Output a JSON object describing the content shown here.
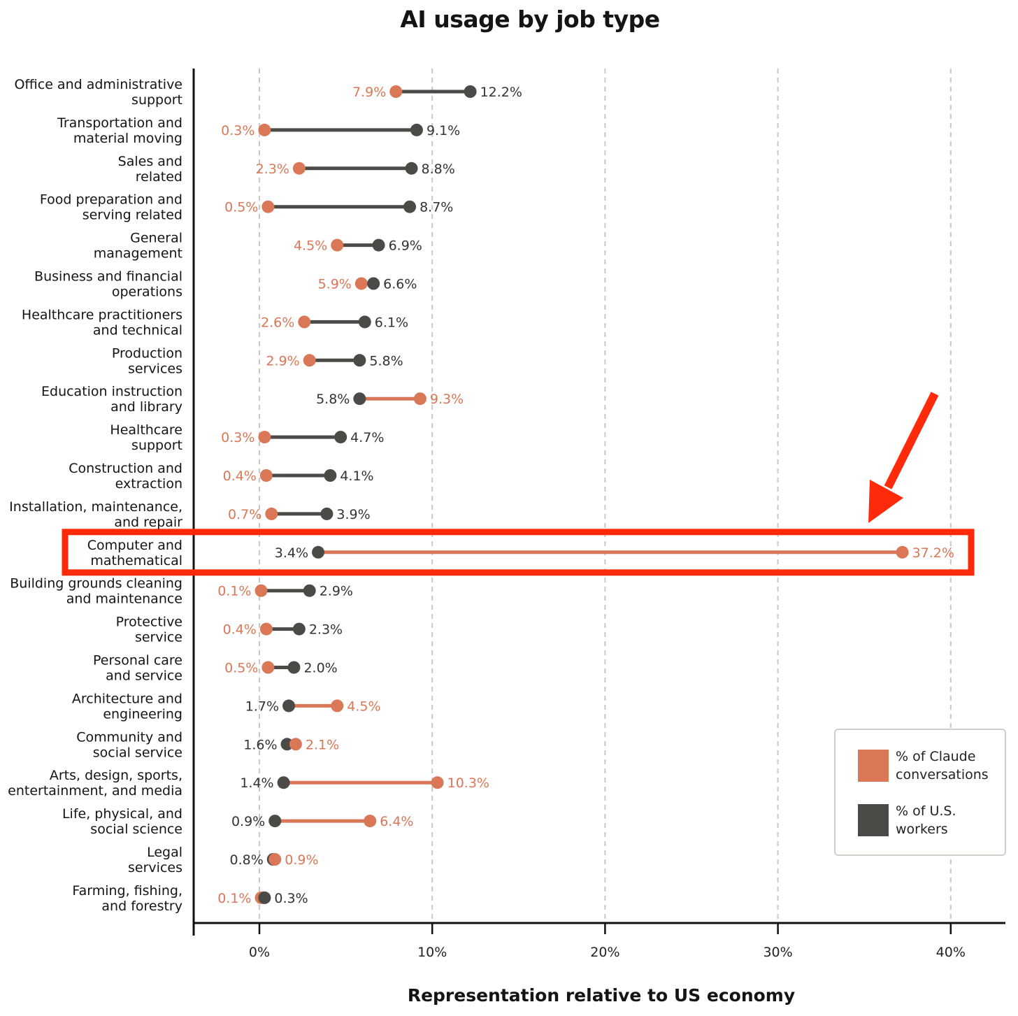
{
  "chart_data": {
    "type": "dumbbell",
    "title": "AI usage by job type",
    "xlabel": "Representation relative to US economy",
    "xlim": [
      -3.8,
      43
    ],
    "xticks": [
      0,
      10,
      20,
      30,
      40
    ],
    "xtick_labels": [
      "0%",
      "10%",
      "20%",
      "30%",
      "40%"
    ],
    "grid": "vertical dashed",
    "legend_position": "bottom-right",
    "series": [
      {
        "key": "claude",
        "name": "% of Claude conversations",
        "color": "#d97757"
      },
      {
        "key": "workers",
        "name": "% of U.S. workers",
        "color": "#4a4a47"
      }
    ],
    "categories": [
      {
        "label": [
          "Office and administrative",
          "support"
        ],
        "claude": 7.9,
        "workers": 12.2,
        "claude_label": "7.9%",
        "workers_label": "12.2%"
      },
      {
        "label": [
          "Transportation and",
          "material moving"
        ],
        "claude": 0.3,
        "workers": 9.1,
        "claude_label": "0.3%",
        "workers_label": "9.1%"
      },
      {
        "label": [
          "Sales and",
          "related"
        ],
        "claude": 2.3,
        "workers": 8.8,
        "claude_label": "2.3%",
        "workers_label": "8.8%"
      },
      {
        "label": [
          "Food preparation and",
          "serving related"
        ],
        "claude": 0.5,
        "workers": 8.7,
        "claude_label": "0.5%",
        "workers_label": "8.7%"
      },
      {
        "label": [
          "General",
          "management"
        ],
        "claude": 4.5,
        "workers": 6.9,
        "claude_label": "4.5%",
        "workers_label": "6.9%"
      },
      {
        "label": [
          "Business and financial",
          "operations"
        ],
        "claude": 5.9,
        "workers": 6.6,
        "claude_label": "5.9%",
        "workers_label": "6.6%"
      },
      {
        "label": [
          "Healthcare practitioners",
          "and technical"
        ],
        "claude": 2.6,
        "workers": 6.1,
        "claude_label": "2.6%",
        "workers_label": "6.1%"
      },
      {
        "label": [
          "Production",
          "services"
        ],
        "claude": 2.9,
        "workers": 5.8,
        "claude_label": "2.9%",
        "workers_label": "5.8%"
      },
      {
        "label": [
          "Education instruction",
          "and library"
        ],
        "claude": 9.3,
        "workers": 5.8,
        "claude_label": "9.3%",
        "workers_label": "5.8%"
      },
      {
        "label": [
          "Healthcare",
          "support"
        ],
        "claude": 0.3,
        "workers": 4.7,
        "claude_label": "0.3%",
        "workers_label": "4.7%"
      },
      {
        "label": [
          "Construction and",
          "extraction"
        ],
        "claude": 0.4,
        "workers": 4.1,
        "claude_label": "0.4%",
        "workers_label": "4.1%"
      },
      {
        "label": [
          "Installation, maintenance,",
          "and repair"
        ],
        "claude": 0.7,
        "workers": 3.9,
        "claude_label": "0.7%",
        "workers_label": "3.9%"
      },
      {
        "label": [
          "Computer and",
          "mathematical"
        ],
        "claude": 37.2,
        "workers": 3.4,
        "claude_label": "37.2%",
        "workers_label": "3.4%",
        "highlighted": true
      },
      {
        "label": [
          "Building grounds cleaning",
          "and maintenance"
        ],
        "claude": 0.1,
        "workers": 2.9,
        "claude_label": "0.1%",
        "workers_label": "2.9%"
      },
      {
        "label": [
          "Protective",
          "service"
        ],
        "claude": 0.4,
        "workers": 2.3,
        "claude_label": "0.4%",
        "workers_label": "2.3%"
      },
      {
        "label": [
          "Personal care",
          "and service"
        ],
        "claude": 0.5,
        "workers": 2.0,
        "claude_label": "0.5%",
        "workers_label": "2.0%"
      },
      {
        "label": [
          "Architecture and",
          "engineering"
        ],
        "claude": 4.5,
        "workers": 1.7,
        "claude_label": "4.5%",
        "workers_label": "1.7%"
      },
      {
        "label": [
          "Community and",
          "social service"
        ],
        "claude": 2.1,
        "workers": 1.6,
        "claude_label": "2.1%",
        "workers_label": "1.6%"
      },
      {
        "label": [
          "Arts, design, sports,",
          "entertainment, and media"
        ],
        "claude": 10.3,
        "workers": 1.4,
        "claude_label": "10.3%",
        "workers_label": "1.4%"
      },
      {
        "label": [
          "Life, physical, and",
          "social science"
        ],
        "claude": 6.4,
        "workers": 0.9,
        "claude_label": "6.4%",
        "workers_label": "0.9%"
      },
      {
        "label": [
          "Legal",
          "services"
        ],
        "claude": 0.9,
        "workers": 0.8,
        "claude_label": "0.9%",
        "workers_label": "0.8%"
      },
      {
        "label": [
          "Farming, fishing,",
          "and forestry"
        ],
        "claude": 0.1,
        "workers": 0.3,
        "claude_label": "0.1%",
        "workers_label": "0.3%"
      }
    ]
  },
  "legend": {
    "claude_label_lines": [
      "% of Claude",
      "conversations"
    ],
    "workers_label_lines": [
      "% of U.S.",
      "workers"
    ],
    "claude_color": "#d97757",
    "workers_color": "#4a4a47"
  },
  "annotation": {
    "highlight_color": "#ff2a0a",
    "arrow_color": "#ff2a0a",
    "highlighted_category": "Computer and mathematical"
  }
}
